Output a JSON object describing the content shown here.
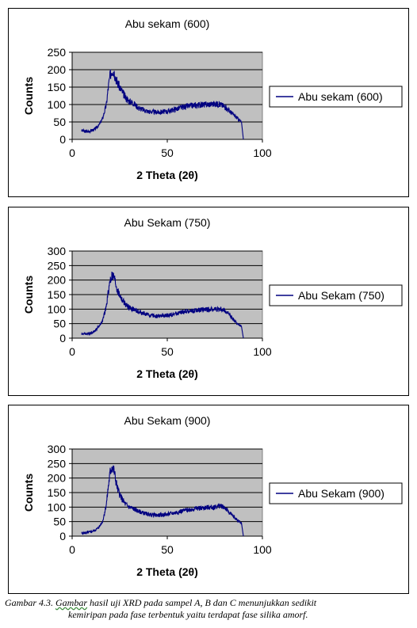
{
  "chart_data": [
    {
      "type": "line",
      "title": "Abu sekam (600)",
      "xlabel": "2 Theta (2θ)",
      "ylabel": "Counts",
      "xlim": [
        0,
        100
      ],
      "ylim": [
        0,
        250
      ],
      "x_ticks": [
        "0",
        "50",
        "100"
      ],
      "y_ticks": [
        "0",
        "50",
        "100",
        "150",
        "200",
        "250"
      ],
      "grid": "horizontal",
      "legend": "right",
      "series": [
        {
          "name": "Abu sekam (600)",
          "color": "#000080",
          "x": [
            5,
            8,
            10,
            12,
            14,
            16,
            18,
            19,
            20,
            21,
            22,
            23,
            24,
            26,
            28,
            30,
            32,
            35,
            40,
            45,
            50,
            55,
            60,
            65,
            70,
            75,
            78,
            80,
            82,
            84,
            86,
            88,
            89,
            90
          ],
          "y": [
            25,
            22,
            25,
            30,
            40,
            60,
            100,
            150,
            185,
            200,
            195,
            175,
            160,
            140,
            120,
            110,
            105,
            90,
            80,
            78,
            80,
            88,
            95,
            98,
            100,
            102,
            100,
            95,
            85,
            75,
            65,
            55,
            50,
            0
          ]
        }
      ]
    },
    {
      "type": "line",
      "title": "Abu Sekam (750)",
      "xlabel": "2 Theta (2θ)",
      "ylabel": "Counts",
      "xlim": [
        0,
        100
      ],
      "ylim": [
        0,
        300
      ],
      "x_ticks": [
        "0",
        "50",
        "100"
      ],
      "y_ticks": [
        "0",
        "50",
        "100",
        "150",
        "200",
        "250",
        "300"
      ],
      "grid": "horizontal",
      "legend": "right",
      "series": [
        {
          "name": "Abu Sekam (750)",
          "color": "#000080",
          "x": [
            5,
            8,
            10,
            12,
            14,
            16,
            18,
            19,
            20,
            21,
            22,
            23,
            24,
            26,
            28,
            30,
            32,
            35,
            40,
            45,
            50,
            55,
            60,
            65,
            70,
            75,
            78,
            80,
            82,
            84,
            86,
            88,
            89,
            90
          ],
          "y": [
            15,
            15,
            18,
            25,
            40,
            60,
            110,
            160,
            200,
            215,
            210,
            185,
            160,
            135,
            115,
            105,
            100,
            90,
            80,
            75,
            78,
            85,
            92,
            95,
            98,
            100,
            100,
            95,
            85,
            70,
            55,
            45,
            40,
            0
          ]
        }
      ]
    },
    {
      "type": "line",
      "title": "Abu Sekam (900)",
      "xlabel": "2 Theta (2θ)",
      "ylabel": "Counts",
      "xlim": [
        0,
        100
      ],
      "ylim": [
        0,
        300
      ],
      "x_ticks": [
        "0",
        "50",
        "100"
      ],
      "y_ticks": [
        "0",
        "50",
        "100",
        "150",
        "200",
        "250",
        "300"
      ],
      "grid": "horizontal",
      "legend": "right",
      "series": [
        {
          "name": "Abu Sekam (900)",
          "color": "#000080",
          "x": [
            5,
            8,
            10,
            12,
            14,
            16,
            18,
            19,
            20,
            21,
            22,
            23,
            24,
            26,
            28,
            30,
            32,
            35,
            40,
            45,
            50,
            55,
            60,
            65,
            70,
            75,
            78,
            80,
            82,
            84,
            86,
            88,
            89,
            90
          ],
          "y": [
            10,
            12,
            15,
            20,
            30,
            50,
            110,
            170,
            220,
            240,
            225,
            190,
            160,
            130,
            110,
            100,
            95,
            85,
            75,
            72,
            75,
            82,
            90,
            95,
            98,
            100,
            105,
            100,
            85,
            72,
            60,
            50,
            45,
            0
          ]
        }
      ]
    }
  ],
  "caption": {
    "prefix": "Gambar 4.3. ",
    "underlined": "Gambar",
    "line1_rest": " hasil uji XRD pada sampel A, B dan C menunjukkan sedikit",
    "line2": "kemiripan pada fase terbentuk yaitu terdapat fase silika amorf."
  }
}
